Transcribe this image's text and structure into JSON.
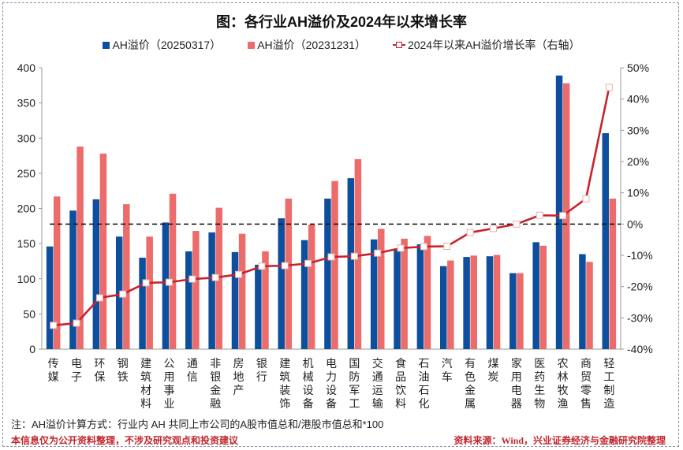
{
  "chart_data": {
    "type": "bar",
    "title": "图：各行业AH溢价及2024年以来增长率",
    "categories": [
      "传媒",
      "电子",
      "环保",
      "钢铁",
      "建筑材料",
      "公用事业",
      "通信",
      "非银金融",
      "房地产",
      "银行",
      "建筑装饰",
      "机械设备",
      "电力设备",
      "国防军工",
      "交通运输",
      "食品饮料",
      "石油石化",
      "汽车",
      "有色金属",
      "煤炭",
      "家用电器",
      "医药生物",
      "农林牧渔",
      "商贸零售",
      "轻工制造"
    ],
    "series": [
      {
        "name": "AH溢价（20250317）",
        "type": "bar",
        "axis": "left",
        "color": "#0d4f9c",
        "values": [
          146,
          197,
          213,
          160,
          130,
          180,
          139,
          166,
          138,
          120,
          186,
          155,
          214,
          243,
          156,
          143,
          149,
          118,
          131,
          132,
          108,
          152,
          389,
          135,
          307
        ]
      },
      {
        "name": "AH溢价（20231231）",
        "type": "bar",
        "axis": "left",
        "color": "#ec6b6b",
        "values": [
          217,
          288,
          278,
          206,
          160,
          221,
          168,
          201,
          164,
          139,
          214,
          177,
          239,
          270,
          171,
          157,
          161,
          126,
          133,
          134,
          108,
          147,
          378,
          124,
          214
        ]
      },
      {
        "name": "2024年以来AH溢价增长率（右轴）",
        "type": "line",
        "axis": "right",
        "color": "#c8232c",
        "unit": "%",
        "values": [
          -32.4,
          -31.7,
          -23.6,
          -22.4,
          -18.8,
          -18.6,
          -17.6,
          -17.1,
          -16.1,
          -13.5,
          -13.3,
          -12.6,
          -10.5,
          -10.3,
          -9.3,
          -7.7,
          -7.2,
          -7.1,
          -2.7,
          -1.4,
          0.0,
          2.8,
          2.7,
          8.1,
          43.7
        ]
      }
    ],
    "left_axis": {
      "ylim": [
        0,
        400
      ],
      "ticks": [
        "0",
        "50",
        "100",
        "150",
        "200",
        "250",
        "300",
        "350",
        "400"
      ]
    },
    "right_axis": {
      "ylim": [
        -40,
        50
      ],
      "ticks": [
        "-40%",
        "-30%",
        "-20%",
        "-10%",
        "0%",
        "10%",
        "20%",
        "30%",
        "40%",
        "50%"
      ]
    },
    "reference_line": {
      "axis": "right",
      "value": 0,
      "style": "dashed"
    },
    "legend_position": "top",
    "grid": false
  },
  "footer": {
    "note": "注：AH溢价计算方式：行业内 AH 共同上市公司的A股市值总和/港股市值总和*100",
    "disclaimer": "本信息仅为公开资料整理，不涉及研究观点和投资建议",
    "source": "资料来源：Wind，兴业证券经济与金融研究院整理"
  }
}
